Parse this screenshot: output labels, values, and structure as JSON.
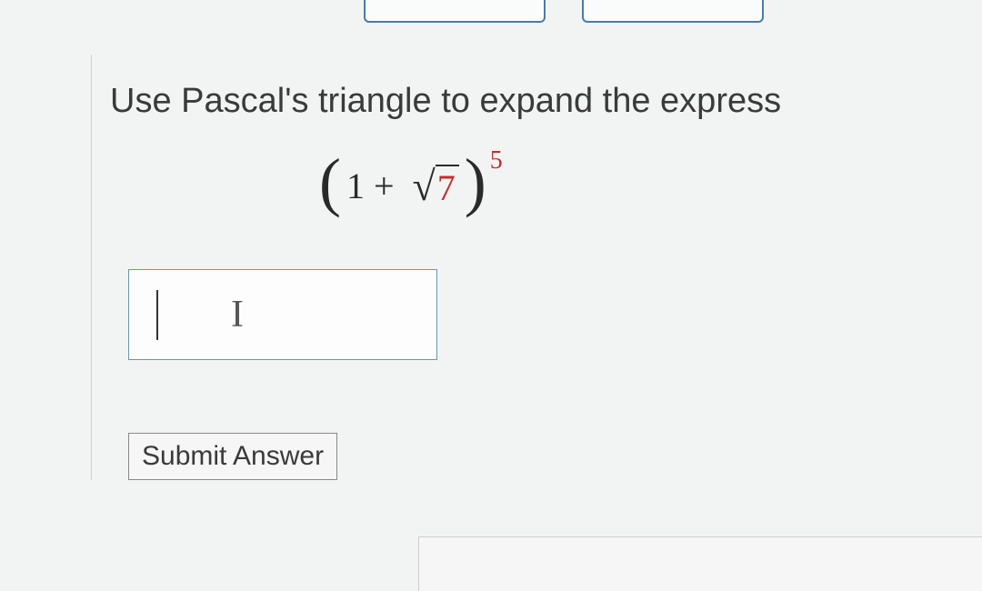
{
  "question": {
    "prompt": "Use Pascal's triangle to expand the express",
    "expression": {
      "base_term1": "1",
      "operator": "+",
      "radical_symbol": "√",
      "radicand": "7",
      "exponent": "5"
    }
  },
  "answer_input": {
    "value": "",
    "placeholder_symbol": "I"
  },
  "buttons": {
    "submit_label": "Submit Answer"
  },
  "colors": {
    "border_blue": "#4a7aa8",
    "text_dark": "#3a3a3a",
    "accent_red": "#c03030",
    "input_border": "#6a95b8",
    "background": "#f2f4f3"
  }
}
